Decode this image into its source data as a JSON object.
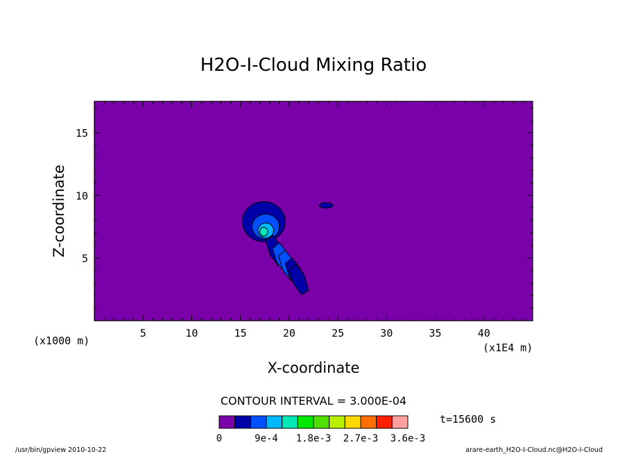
{
  "chart_data": {
    "type": "heatmap",
    "title": "H2O-I-Cloud Mixing Ratio",
    "xlabel": "X-coordinate",
    "ylabel": "Z-coordinate",
    "xunit": "(x1E4 m)",
    "yunit": "(x1000 m)",
    "xlim": [
      0,
      45
    ],
    "ylim": [
      0,
      17.5
    ],
    "xticks": [
      5,
      10,
      15,
      20,
      25,
      30,
      35,
      40
    ],
    "yticks": [
      5,
      10,
      15
    ],
    "contour_interval": "CONTOUR INTERVAL = 3.000E-04",
    "time": "t=15600 s",
    "background_color": "#7a00aa",
    "levels": [
      {
        "min": 0,
        "max": 0.0003,
        "color": "#7a00aa"
      },
      {
        "min": 0.0003,
        "max": 0.0006,
        "color": "#0000a8"
      },
      {
        "min": 0.0006,
        "max": 0.0009,
        "color": "#0050ff"
      },
      {
        "min": 0.0009,
        "max": 0.0012,
        "color": "#00b8ff"
      },
      {
        "min": 0.0012,
        "max": 0.0015,
        "color": "#00e8b8"
      },
      {
        "min": 0.0015,
        "max": 0.0018,
        "color": "#00e800"
      },
      {
        "min": 0.0018,
        "max": 0.0021,
        "color": "#50e000"
      },
      {
        "min": 0.0021,
        "max": 0.0024,
        "color": "#b8f000"
      },
      {
        "min": 0.0024,
        "max": 0.0027,
        "color": "#ffd800"
      },
      {
        "min": 0.0027,
        "max": 0.003,
        "color": "#ff7000"
      },
      {
        "min": 0.003,
        "max": 0.0033,
        "color": "#ff2000"
      },
      {
        "min": 0.0033,
        "max": 0.0036,
        "color": "#ffa0a0"
      }
    ],
    "colorbar_labels": [
      "0",
      "9e-4",
      "1.8e-3",
      "2.7e-3",
      "3.6e-3"
    ],
    "features": [
      {
        "kind": "blob",
        "x": 17.4,
        "z": 7.9,
        "rx": 2.2,
        "rz": 1.6,
        "value": 0.0004
      },
      {
        "kind": "blob",
        "x": 17.6,
        "z": 7.5,
        "rx": 1.4,
        "rz": 1.0,
        "value": 0.0008
      },
      {
        "kind": "blob",
        "x": 17.6,
        "z": 7.2,
        "rx": 0.8,
        "rz": 0.6,
        "value": 0.0011
      },
      {
        "kind": "blob",
        "x": 17.4,
        "z": 7.1,
        "rx": 0.4,
        "rz": 0.35,
        "value": 0.0014
      },
      {
        "kind": "blob",
        "x": 23.8,
        "z": 9.2,
        "rx": 0.7,
        "rz": 0.22,
        "value": 0.0004
      },
      {
        "kind": "streak",
        "x": 18.6,
        "z": 5.6,
        "value": 0.0005
      },
      {
        "kind": "streak",
        "x": 19.3,
        "z": 5.0,
        "value": 0.0007
      },
      {
        "kind": "streak",
        "x": 19.9,
        "z": 4.4,
        "value": 0.0006
      },
      {
        "kind": "streak",
        "x": 20.6,
        "z": 3.8,
        "value": 0.0005
      },
      {
        "kind": "streak",
        "x": 21.0,
        "z": 3.3,
        "value": 0.0004
      }
    ]
  },
  "footer": {
    "left": "/usr/bin/gpview   2010-10-22",
    "right": "arare-earth_H2O-I-Cloud.nc@H2O-I-Cloud"
  }
}
